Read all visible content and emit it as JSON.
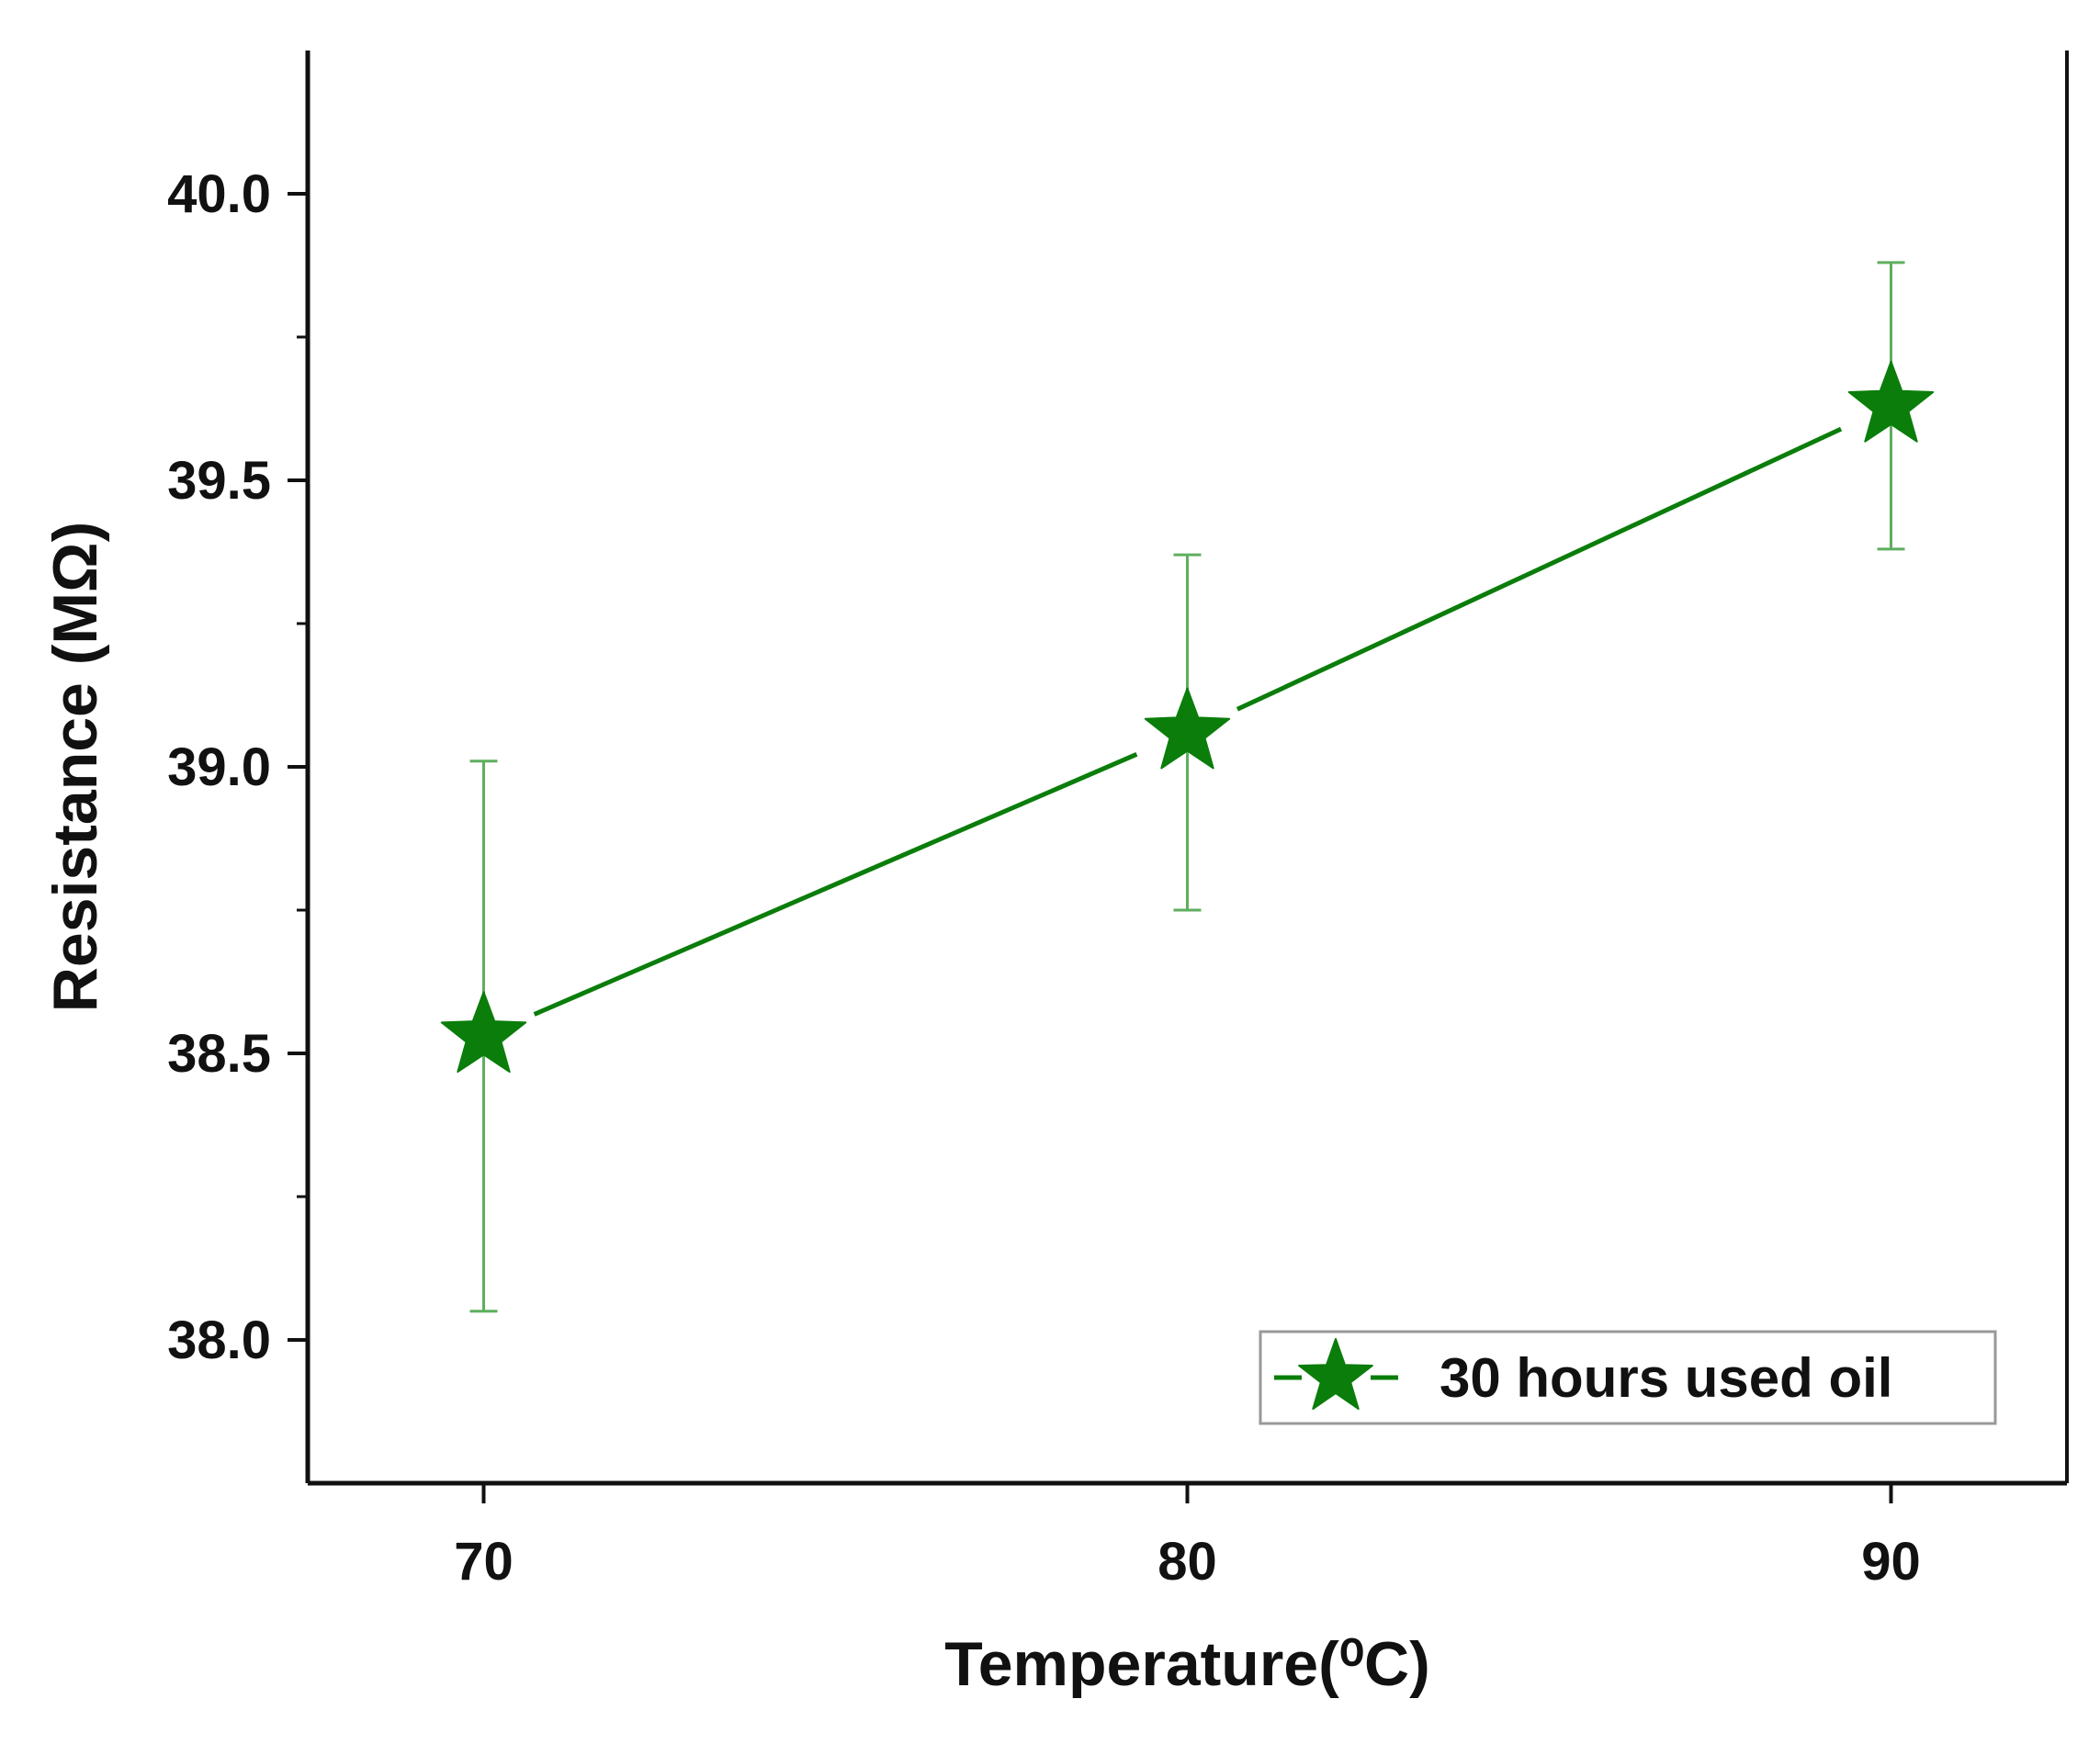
{
  "chart_data": {
    "type": "line",
    "title": "",
    "xlabel": "Temperature(⁰C)",
    "ylabel": "Resistance (MΩ)",
    "xlim": [
      67.5,
      92.5
    ],
    "ylim": [
      37.75,
      40.25
    ],
    "x_ticks": [
      70,
      80,
      90
    ],
    "x_tick_labels": [
      "70",
      "80",
      "90"
    ],
    "y_ticks": [
      38.0,
      38.5,
      39.0,
      39.5,
      40.0
    ],
    "y_tick_labels": [
      "38.0",
      "38.5",
      "39.0",
      "39.5",
      "40.0"
    ],
    "grid": false,
    "legend_position": "bottom-right",
    "series": [
      {
        "name": "30 hours used oil",
        "color": "#0a7d0a",
        "marker": "star-icon",
        "x": [
          70,
          80,
          90
        ],
        "y": [
          38.53,
          39.06,
          39.63
        ],
        "y_err_low": [
          38.05,
          38.75,
          39.38
        ],
        "y_err_high": [
          39.01,
          39.37,
          39.88
        ]
      }
    ]
  }
}
